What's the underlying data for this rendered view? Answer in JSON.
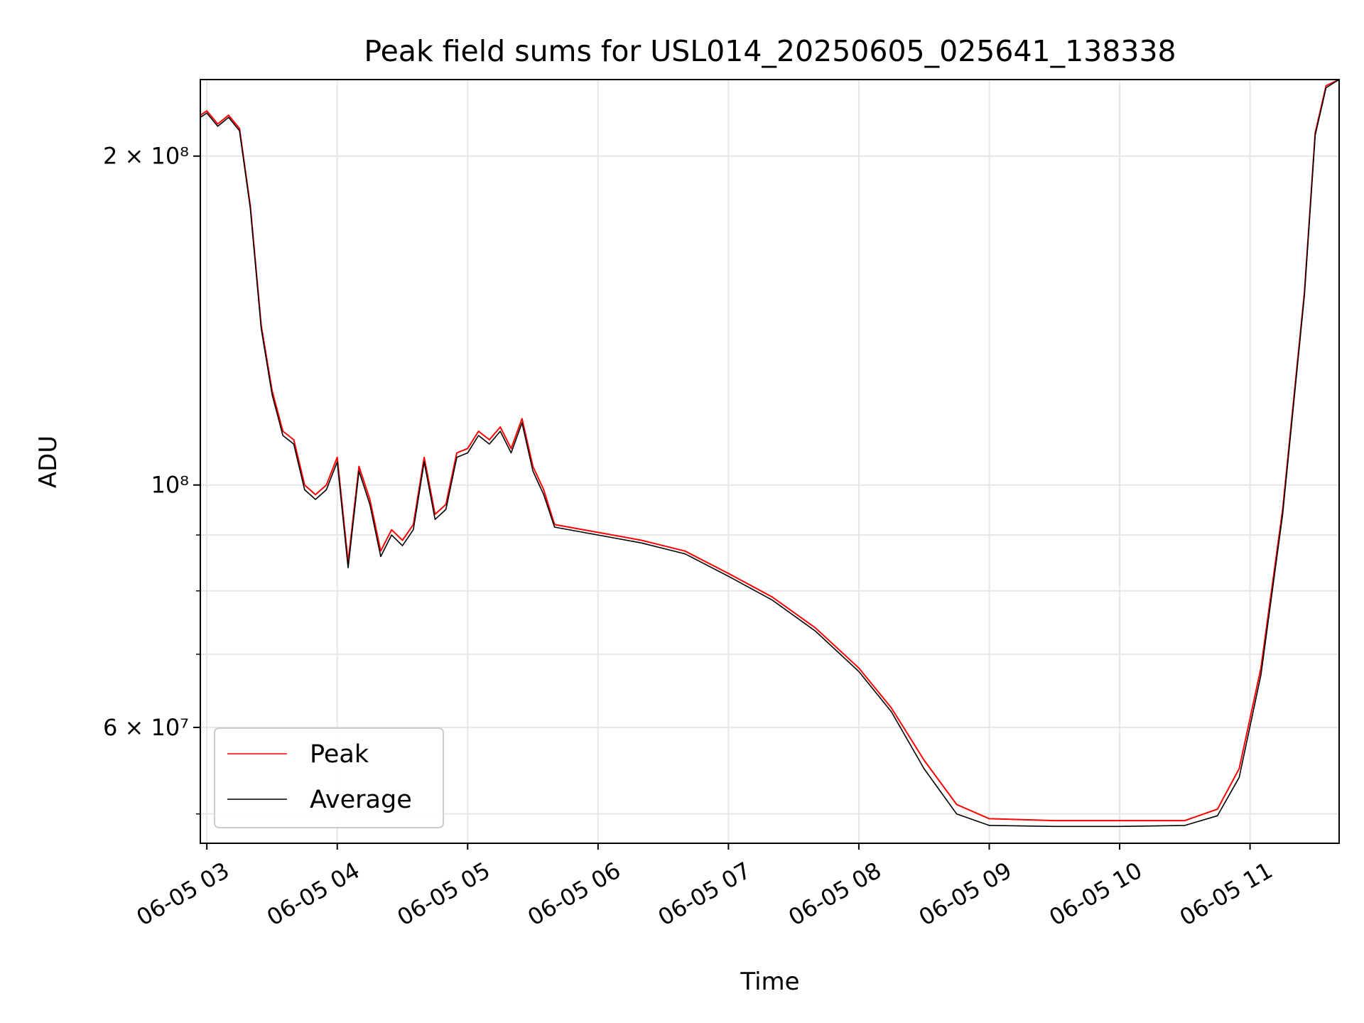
{
  "chart_data": {
    "type": "line",
    "title": "Peak field sums for USL014_20250605_025641_138338",
    "xlabel": "Time",
    "ylabel": "ADU",
    "y_scale": "log",
    "ylim": [
      47000000,
      235000000
    ],
    "xlim": [
      "2025-06-05 02:57",
      "2025-06-05 11:41"
    ],
    "grid": true,
    "legend_position": "lower left",
    "x_ticks": [
      {
        "value": "2025-06-05 03:00",
        "label": "06-05 03"
      },
      {
        "value": "2025-06-05 04:00",
        "label": "06-05 04"
      },
      {
        "value": "2025-06-05 05:00",
        "label": "06-05 05"
      },
      {
        "value": "2025-06-05 06:00",
        "label": "06-05 06"
      },
      {
        "value": "2025-06-05 07:00",
        "label": "06-05 07"
      },
      {
        "value": "2025-06-05 08:00",
        "label": "06-05 08"
      },
      {
        "value": "2025-06-05 09:00",
        "label": "06-05 09"
      },
      {
        "value": "2025-06-05 10:00",
        "label": "06-05 10"
      },
      {
        "value": "2025-06-05 11:00",
        "label": "06-05 11"
      }
    ],
    "y_major_ticks": [
      {
        "value": 200000000,
        "label": "2 × 10⁸"
      },
      {
        "value": 100000000,
        "label": "10⁸"
      },
      {
        "value": 60000000,
        "label": "6 × 10⁷"
      }
    ],
    "y_minor_ticks": [
      50000000,
      70000000,
      80000000,
      90000000
    ],
    "series": [
      {
        "name": "Peak",
        "color": "#ff0000",
        "x": [
          "2025-06-05 02:57",
          "2025-06-05 03:00",
          "2025-06-05 03:05",
          "2025-06-05 03:10",
          "2025-06-05 03:15",
          "2025-06-05 03:20",
          "2025-06-05 03:25",
          "2025-06-05 03:30",
          "2025-06-05 03:35",
          "2025-06-05 03:40",
          "2025-06-05 03:45",
          "2025-06-05 03:50",
          "2025-06-05 03:55",
          "2025-06-05 04:00",
          "2025-06-05 04:05",
          "2025-06-05 04:10",
          "2025-06-05 04:15",
          "2025-06-05 04:20",
          "2025-06-05 04:25",
          "2025-06-05 04:30",
          "2025-06-05 04:35",
          "2025-06-05 04:40",
          "2025-06-05 04:45",
          "2025-06-05 04:50",
          "2025-06-05 04:55",
          "2025-06-05 05:00",
          "2025-06-05 05:05",
          "2025-06-05 05:10",
          "2025-06-05 05:15",
          "2025-06-05 05:20",
          "2025-06-05 05:25",
          "2025-06-05 05:30",
          "2025-06-05 05:35",
          "2025-06-05 05:40",
          "2025-06-05 06:00",
          "2025-06-05 06:20",
          "2025-06-05 06:40",
          "2025-06-05 07:00",
          "2025-06-05 07:20",
          "2025-06-05 07:40",
          "2025-06-05 08:00",
          "2025-06-05 08:15",
          "2025-06-05 08:30",
          "2025-06-05 08:45",
          "2025-06-05 09:00",
          "2025-06-05 09:30",
          "2025-06-05 10:00",
          "2025-06-05 10:30",
          "2025-06-05 10:45",
          "2025-06-05 10:55",
          "2025-06-05 11:05",
          "2025-06-05 11:15",
          "2025-06-05 11:25",
          "2025-06-05 11:30",
          "2025-06-05 11:35",
          "2025-06-05 11:41"
        ],
        "y": [
          218000000,
          220000000,
          214000000,
          218000000,
          212000000,
          180000000,
          140000000,
          122000000,
          112000000,
          110000000,
          100000000,
          98000000,
          100000000,
          106000000,
          85000000,
          104000000,
          97000000,
          87000000,
          91000000,
          89000000,
          92000000,
          106000000,
          94000000,
          96000000,
          107000000,
          108000000,
          112000000,
          110000000,
          113000000,
          108000000,
          115000000,
          104000000,
          99000000,
          92000000,
          90500000,
          89000000,
          87000000,
          83000000,
          79000000,
          74000000,
          68000000,
          62500000,
          56000000,
          51000000,
          49500000,
          49300000,
          49300000,
          49300000,
          50500000,
          55000000,
          68000000,
          95000000,
          150000000,
          210000000,
          232000000,
          235000000
        ]
      },
      {
        "name": "Average",
        "color": "#000000",
        "x": [
          "2025-06-05 02:57",
          "2025-06-05 03:00",
          "2025-06-05 03:05",
          "2025-06-05 03:10",
          "2025-06-05 03:15",
          "2025-06-05 03:20",
          "2025-06-05 03:25",
          "2025-06-05 03:30",
          "2025-06-05 03:35",
          "2025-06-05 03:40",
          "2025-06-05 03:45",
          "2025-06-05 03:50",
          "2025-06-05 03:55",
          "2025-06-05 04:00",
          "2025-06-05 04:05",
          "2025-06-05 04:10",
          "2025-06-05 04:15",
          "2025-06-05 04:20",
          "2025-06-05 04:25",
          "2025-06-05 04:30",
          "2025-06-05 04:35",
          "2025-06-05 04:40",
          "2025-06-05 04:45",
          "2025-06-05 04:50",
          "2025-06-05 04:55",
          "2025-06-05 05:00",
          "2025-06-05 05:05",
          "2025-06-05 05:10",
          "2025-06-05 05:15",
          "2025-06-05 05:20",
          "2025-06-05 05:25",
          "2025-06-05 05:30",
          "2025-06-05 05:35",
          "2025-06-05 05:40",
          "2025-06-05 06:00",
          "2025-06-05 06:20",
          "2025-06-05 06:40",
          "2025-06-05 07:00",
          "2025-06-05 07:20",
          "2025-06-05 07:40",
          "2025-06-05 08:00",
          "2025-06-05 08:15",
          "2025-06-05 08:30",
          "2025-06-05 08:45",
          "2025-06-05 09:00",
          "2025-06-05 09:30",
          "2025-06-05 10:00",
          "2025-06-05 10:30",
          "2025-06-05 10:45",
          "2025-06-05 10:55",
          "2025-06-05 11:05",
          "2025-06-05 11:15",
          "2025-06-05 11:25",
          "2025-06-05 11:30",
          "2025-06-05 11:35",
          "2025-06-05 11:41"
        ],
        "y": [
          217000000,
          219000000,
          213000000,
          217000000,
          211000000,
          179000000,
          139000000,
          121000000,
          111000000,
          109000000,
          99000000,
          97000000,
          99000000,
          105000000,
          84000000,
          103000000,
          96000000,
          86000000,
          90000000,
          88000000,
          91000000,
          105000000,
          93000000,
          95000000,
          106000000,
          107000000,
          111000000,
          109000000,
          112000000,
          107000000,
          114000000,
          103000000,
          98000000,
          91500000,
          90000000,
          88500000,
          86500000,
          82500000,
          78500000,
          73500000,
          67500000,
          62000000,
          55000000,
          50000000,
          48800000,
          48700000,
          48700000,
          48800000,
          49800000,
          54000000,
          67000000,
          94000000,
          149000000,
          209000000,
          231000000,
          235000000
        ]
      }
    ]
  }
}
